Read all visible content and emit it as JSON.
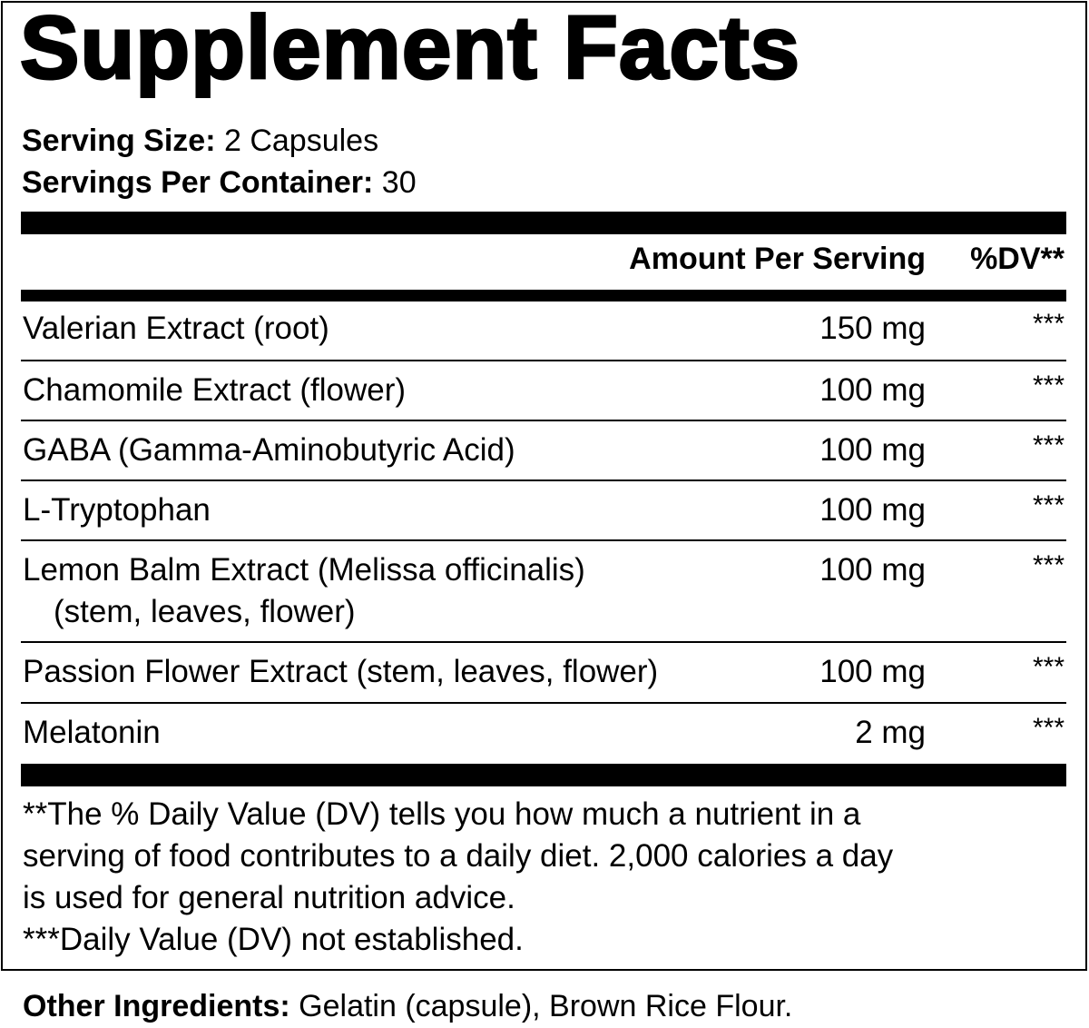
{
  "title": "Supplement Facts",
  "serving_size": {
    "label": "Serving Size:",
    "value": "2 Capsules"
  },
  "servings_per_container": {
    "label": "Servings Per Container:",
    "value": "30"
  },
  "header": {
    "amount": "Amount Per Serving",
    "dv": "%DV**"
  },
  "ingredients": [
    {
      "name": "Valerian Extract (root)",
      "sub": "",
      "amount": "150 mg",
      "dv": "***"
    },
    {
      "name": "Chamomile Extract (flower)",
      "sub": "",
      "amount": "100 mg",
      "dv": "***"
    },
    {
      "name": "GABA (Gamma-Aminobutyric Acid)",
      "sub": "",
      "amount": "100 mg",
      "dv": "***"
    },
    {
      "name": "L-Tryptophan",
      "sub": "",
      "amount": "100 mg",
      "dv": "***"
    },
    {
      "name": "Lemon Balm Extract (Melissa officinalis)",
      "sub": "(stem, leaves, flower)",
      "amount": "100 mg",
      "dv": "***"
    },
    {
      "name": "Passion Flower Extract (stem, leaves, flower)",
      "sub": "",
      "amount": "100 mg",
      "dv": "***"
    },
    {
      "name": "Melatonin",
      "sub": "",
      "amount": "2 mg",
      "dv": "***"
    }
  ],
  "footnotes": [
    "**The % Daily Value (DV) tells you how much a nutrient in a",
    "serving of food contributes to a daily diet. 2,000 calories a day",
    "is used for general nutrition advice.",
    "***Daily Value (DV) not established."
  ],
  "other_ingredients": {
    "label": "Other Ingredients:",
    "value": "Gelatin (capsule), Brown Rice Flour."
  }
}
